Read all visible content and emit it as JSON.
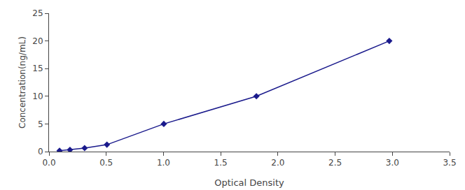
{
  "chart_data": {
    "type": "line",
    "x": [
      0.092,
      0.183,
      0.311,
      0.506,
      1.003,
      1.812,
      2.973
    ],
    "values": [
      0.156,
      0.312,
      0.625,
      1.25,
      5.0,
      10.0,
      20.0
    ],
    "color": "#1A1A8C",
    "marker": "diamond",
    "xlabel": "Optical Density",
    "ylabel": "Concentration(ng/mL)",
    "xlim": [
      0,
      3.5
    ],
    "ylim": [
      0,
      25
    ],
    "xticks": [
      {
        "value": 0,
        "label": "0.0"
      },
      0.5,
      {
        "value": 1.0,
        "label": "1.0"
      },
      1.5,
      {
        "value": 2.0,
        "label": "2.0"
      },
      2.5,
      {
        "value": 3.0,
        "label": "3.0"
      },
      3.5
    ],
    "yticks": [
      0,
      5,
      10,
      15,
      20,
      25
    ],
    "grid": false
  }
}
